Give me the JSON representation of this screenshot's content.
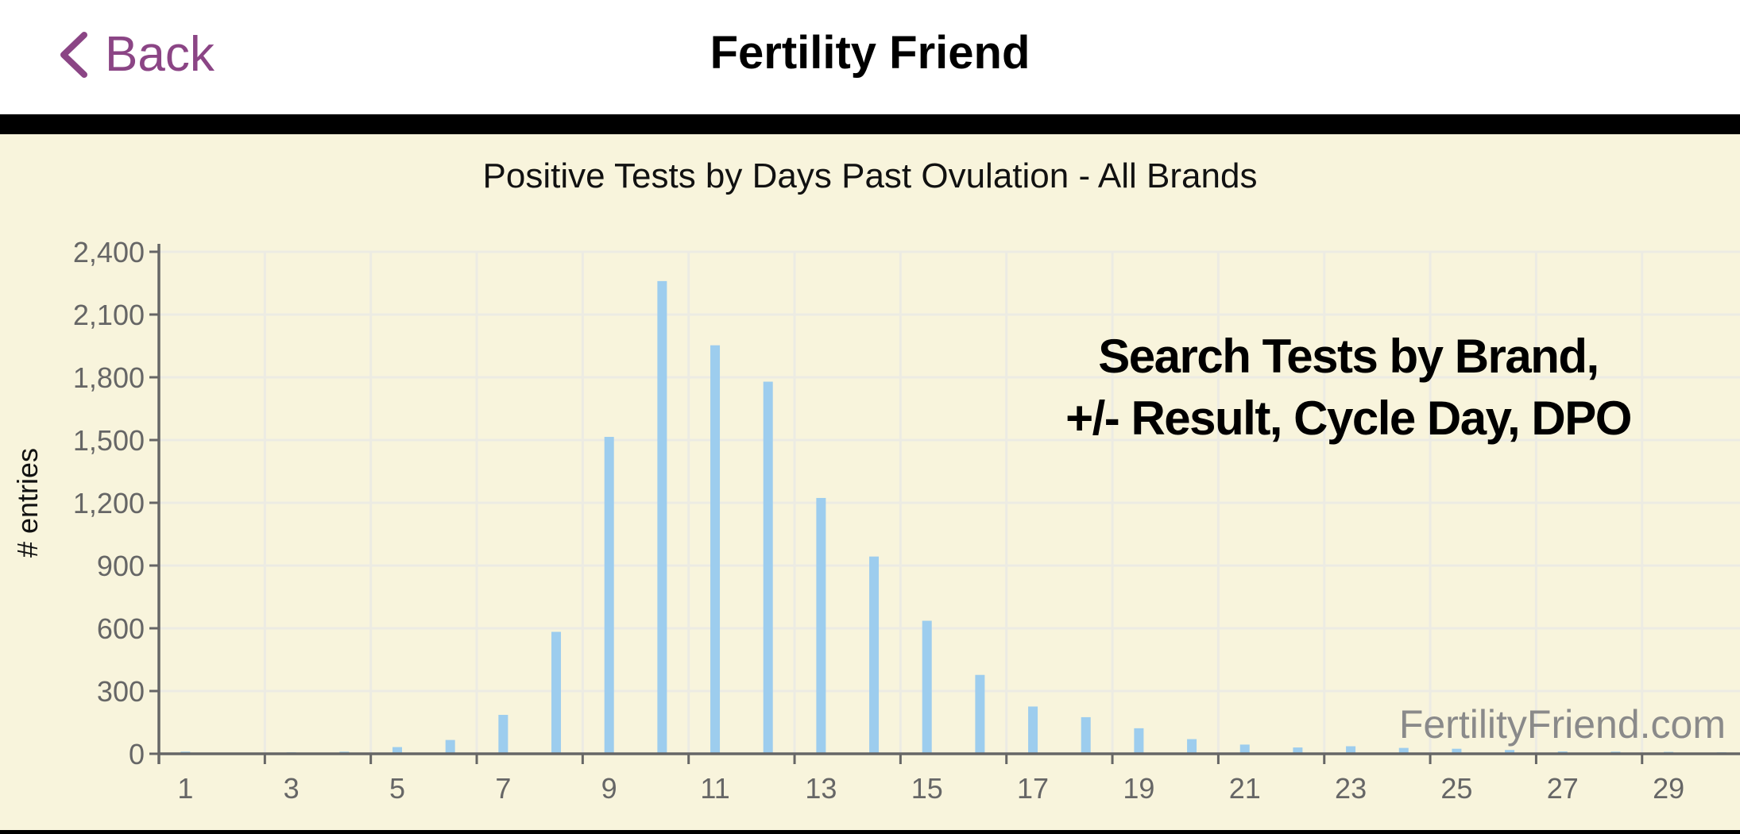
{
  "navbar": {
    "back_label": "Back",
    "back_icon": "chevron-left-icon",
    "title": "Fertility Friend",
    "accent_color": "#8b4585"
  },
  "chart": {
    "title": "Positive Tests by Days Past Ovulation - All Brands",
    "ylabel": "# entries",
    "annotation_line1": "Search Tests by Brand,",
    "annotation_line2": "+/- Result, Cycle Day, DPO",
    "watermark": "FertilityFriend.com",
    "bar_color": "#9dcdee",
    "background_color": "#f8f4dc"
  },
  "chart_data": {
    "type": "bar",
    "title": "Positive Tests by Days Past Ovulation - All Brands",
    "xlabel": "",
    "ylabel": "# entries",
    "categories": [
      1,
      2,
      3,
      4,
      5,
      6,
      7,
      8,
      9,
      10,
      11,
      12,
      13,
      14,
      15,
      16,
      17,
      18,
      19,
      20,
      21,
      22,
      23,
      24,
      25,
      26,
      27,
      28,
      29,
      30
    ],
    "values": [
      10,
      5,
      7,
      10,
      32,
      66,
      186,
      583,
      1515,
      2260,
      1953,
      1779,
      1223,
      943,
      636,
      377,
      226,
      175,
      122,
      70,
      44,
      30,
      36,
      28,
      24,
      18,
      11,
      10,
      9,
      7
    ],
    "x_tick_labels": [
      "1",
      "3",
      "5",
      "7",
      "9",
      "11",
      "13",
      "15",
      "17",
      "19",
      "21",
      "23",
      "25",
      "27",
      "29"
    ],
    "y_tick_labels": [
      "0",
      "300",
      "600",
      "900",
      "1,200",
      "1,500",
      "1,800",
      "2,100",
      "2,400"
    ],
    "ylim": [
      0,
      2400
    ],
    "grid": true,
    "legend": null,
    "annotations": [
      "Search Tests by Brand, +/- Result, Cycle Day, DPO",
      "FertilityFriend.com"
    ]
  }
}
